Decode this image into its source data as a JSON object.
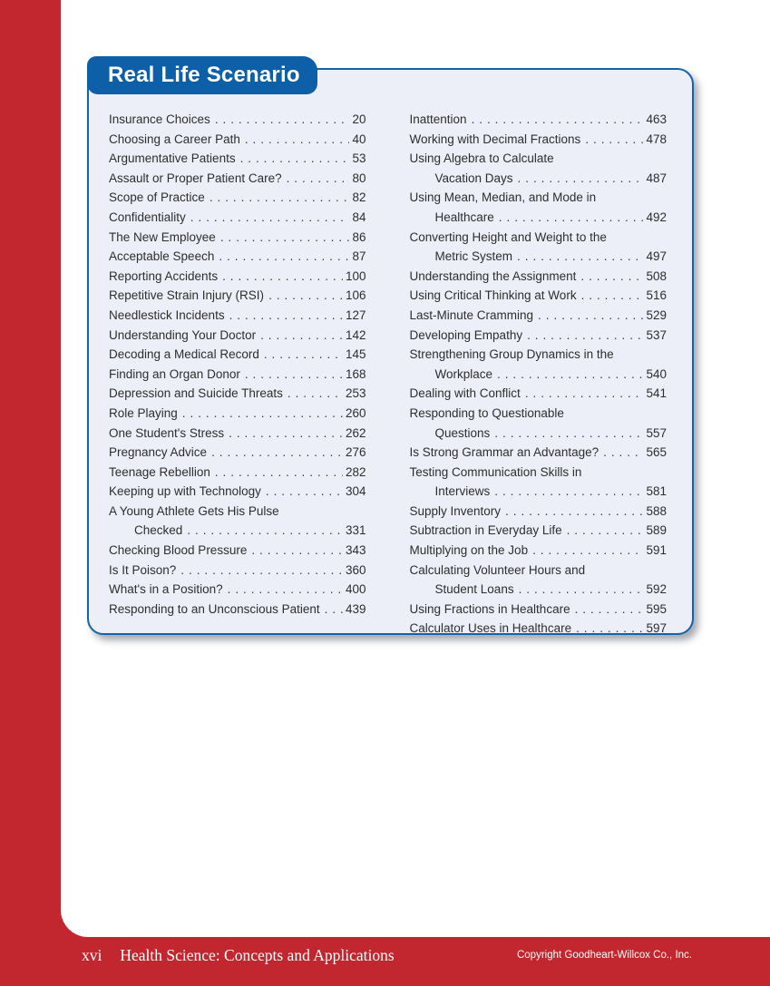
{
  "page": {
    "header_tab": "Real Life Scenario",
    "footer": {
      "page_number": "xvi",
      "book_title": "Health Science: Concepts and Applications",
      "copyright": "Copyright Goodheart-Willcox Co., Inc."
    },
    "colors": {
      "frame_red": "#c2262f",
      "tab_blue": "#0d5fa7",
      "box_border_blue": "#1263a9",
      "box_fill": "#edeff8",
      "body_text": "#2e2e2e"
    }
  },
  "toc": {
    "columns": [
      {
        "side": "left",
        "entries": [
          {
            "lines": [
              "Insurance Choices"
            ],
            "page": "20"
          },
          {
            "lines": [
              "Choosing a Career Path"
            ],
            "page": "40"
          },
          {
            "lines": [
              "Argumentative Patients"
            ],
            "page": "53"
          },
          {
            "lines": [
              "Assault or Proper Patient Care?"
            ],
            "page": "80"
          },
          {
            "lines": [
              "Scope of Practice"
            ],
            "page": "82"
          },
          {
            "lines": [
              "Confidentiality"
            ],
            "page": "84"
          },
          {
            "lines": [
              "The New Employee"
            ],
            "page": "86"
          },
          {
            "lines": [
              "Acceptable Speech"
            ],
            "page": "87"
          },
          {
            "lines": [
              "Reporting Accidents"
            ],
            "page": "100"
          },
          {
            "lines": [
              "Repetitive Strain Injury (RSI)"
            ],
            "page": "106"
          },
          {
            "lines": [
              "Needlestick Incidents"
            ],
            "page": "127"
          },
          {
            "lines": [
              "Understanding Your Doctor"
            ],
            "page": "142"
          },
          {
            "lines": [
              "Decoding a Medical Record"
            ],
            "page": "145"
          },
          {
            "lines": [
              "Finding an Organ Donor"
            ],
            "page": "168"
          },
          {
            "lines": [
              "Depression and Suicide Threats"
            ],
            "page": "253"
          },
          {
            "lines": [
              "Role Playing"
            ],
            "page": "260"
          },
          {
            "lines": [
              "One Student's Stress"
            ],
            "page": "262"
          },
          {
            "lines": [
              "Pregnancy Advice"
            ],
            "page": "276"
          },
          {
            "lines": [
              "Teenage Rebellion"
            ],
            "page": "282"
          },
          {
            "lines": [
              "Keeping up with Technology"
            ],
            "page": "304"
          },
          {
            "lines": [
              "A Young Athlete Gets His Pulse",
              "Checked"
            ],
            "page": "331"
          },
          {
            "lines": [
              "Checking Blood Pressure"
            ],
            "page": "343"
          },
          {
            "lines": [
              "Is It Poison?"
            ],
            "page": "360"
          },
          {
            "lines": [
              "What's in a Position?"
            ],
            "page": "400"
          },
          {
            "lines": [
              "Responding to an Unconscious Patient"
            ],
            "page": "439"
          }
        ]
      },
      {
        "side": "right",
        "entries": [
          {
            "lines": [
              "Inattention"
            ],
            "page": "463"
          },
          {
            "lines": [
              "Working with Decimal Fractions"
            ],
            "page": "478"
          },
          {
            "lines": [
              "Using Algebra to Calculate",
              "Vacation Days"
            ],
            "page": "487"
          },
          {
            "lines": [
              "Using Mean, Median, and Mode in",
              "Healthcare"
            ],
            "page": "492"
          },
          {
            "lines": [
              "Converting Height and Weight to the",
              "Metric System"
            ],
            "page": "497"
          },
          {
            "lines": [
              "Understanding the Assignment"
            ],
            "page": "508"
          },
          {
            "lines": [
              "Using Critical Thinking at Work"
            ],
            "page": "516"
          },
          {
            "lines": [
              "Last-Minute Cramming"
            ],
            "page": "529"
          },
          {
            "lines": [
              "Developing Empathy"
            ],
            "page": "537"
          },
          {
            "lines": [
              "Strengthening Group Dynamics in the",
              "Workplace"
            ],
            "page": "540"
          },
          {
            "lines": [
              "Dealing with Conflict"
            ],
            "page": "541"
          },
          {
            "lines": [
              "Responding to Questionable",
              "Questions"
            ],
            "page": "557"
          },
          {
            "lines": [
              "Is Strong Grammar an Advantage?"
            ],
            "page": "565"
          },
          {
            "lines": [
              "Testing Communication Skills in",
              "Interviews"
            ],
            "page": "581"
          },
          {
            "lines": [
              "Supply Inventory"
            ],
            "page": "588"
          },
          {
            "lines": [
              "Subtraction in Everyday Life"
            ],
            "page": "589"
          },
          {
            "lines": [
              "Multiplying on the Job"
            ],
            "page": "591"
          },
          {
            "lines": [
              "Calculating Volunteer Hours and",
              "Student Loans"
            ],
            "page": "592"
          },
          {
            "lines": [
              "Using Fractions in Healthcare"
            ],
            "page": "595"
          },
          {
            "lines": [
              "Calculator Uses in Healthcare"
            ],
            "page": "597"
          }
        ]
      }
    ]
  }
}
